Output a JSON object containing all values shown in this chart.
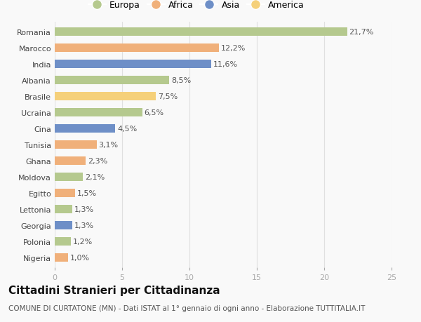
{
  "countries": [
    "Romania",
    "Marocco",
    "India",
    "Albania",
    "Brasile",
    "Ucraina",
    "Cina",
    "Tunisia",
    "Ghana",
    "Moldova",
    "Egitto",
    "Lettonia",
    "Georgia",
    "Polonia",
    "Nigeria"
  ],
  "values": [
    21.7,
    12.2,
    11.6,
    8.5,
    7.5,
    6.5,
    4.5,
    3.1,
    2.3,
    2.1,
    1.5,
    1.3,
    1.3,
    1.2,
    1.0
  ],
  "labels": [
    "21,7%",
    "12,2%",
    "11,6%",
    "8,5%",
    "7,5%",
    "6,5%",
    "4,5%",
    "3,1%",
    "2,3%",
    "2,1%",
    "1,5%",
    "1,3%",
    "1,3%",
    "1,2%",
    "1,0%"
  ],
  "continents": [
    "Europa",
    "Africa",
    "Asia",
    "Europa",
    "America",
    "Europa",
    "Asia",
    "Africa",
    "Africa",
    "Europa",
    "Africa",
    "Europa",
    "Asia",
    "Europa",
    "Africa"
  ],
  "colors": {
    "Europa": "#b5c98e",
    "Africa": "#f0b07a",
    "Asia": "#6e8fc7",
    "America": "#f5d07a"
  },
  "legend_order": [
    "Europa",
    "Africa",
    "Asia",
    "America"
  ],
  "title": "Cittadini Stranieri per Cittadinanza",
  "subtitle": "COMUNE DI CURTATONE (MN) - Dati ISTAT al 1° gennaio di ogni anno - Elaborazione TUTTITALIA.IT",
  "xlim": [
    0,
    25
  ],
  "xticks": [
    0,
    5,
    10,
    15,
    20,
    25
  ],
  "background_color": "#f9f9f9",
  "grid_color": "#e0e0e0",
  "bar_height": 0.55,
  "title_fontsize": 11,
  "subtitle_fontsize": 7.5,
  "label_fontsize": 8,
  "tick_fontsize": 8,
  "legend_fontsize": 9
}
